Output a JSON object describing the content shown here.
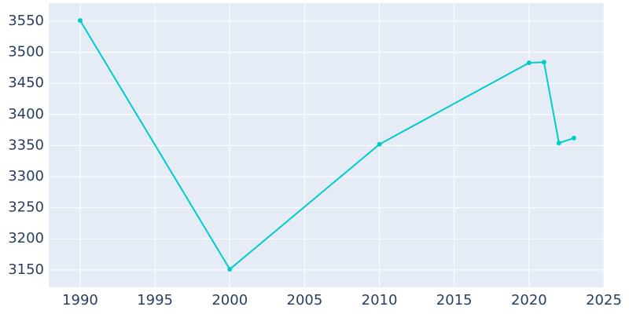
{
  "chart_data": {
    "type": "line",
    "x": [
      1990,
      2000,
      2010,
      2020,
      2021,
      2022,
      2023
    ],
    "series": [
      {
        "color": "#00cccc",
        "values": [
          3551,
          3151,
          3352,
          3483,
          3484,
          3354,
          3362
        ]
      }
    ],
    "xlim": [
      1987.9,
      2025
    ],
    "xticks": [
      1990,
      1995,
      2000,
      2005,
      2010,
      2015,
      2020,
      2025
    ],
    "ylim": [
      3122,
      3579
    ],
    "yticks": [
      3150,
      3200,
      3250,
      3300,
      3350,
      3400,
      3450,
      3500,
      3550
    ],
    "grid": true
  }
}
